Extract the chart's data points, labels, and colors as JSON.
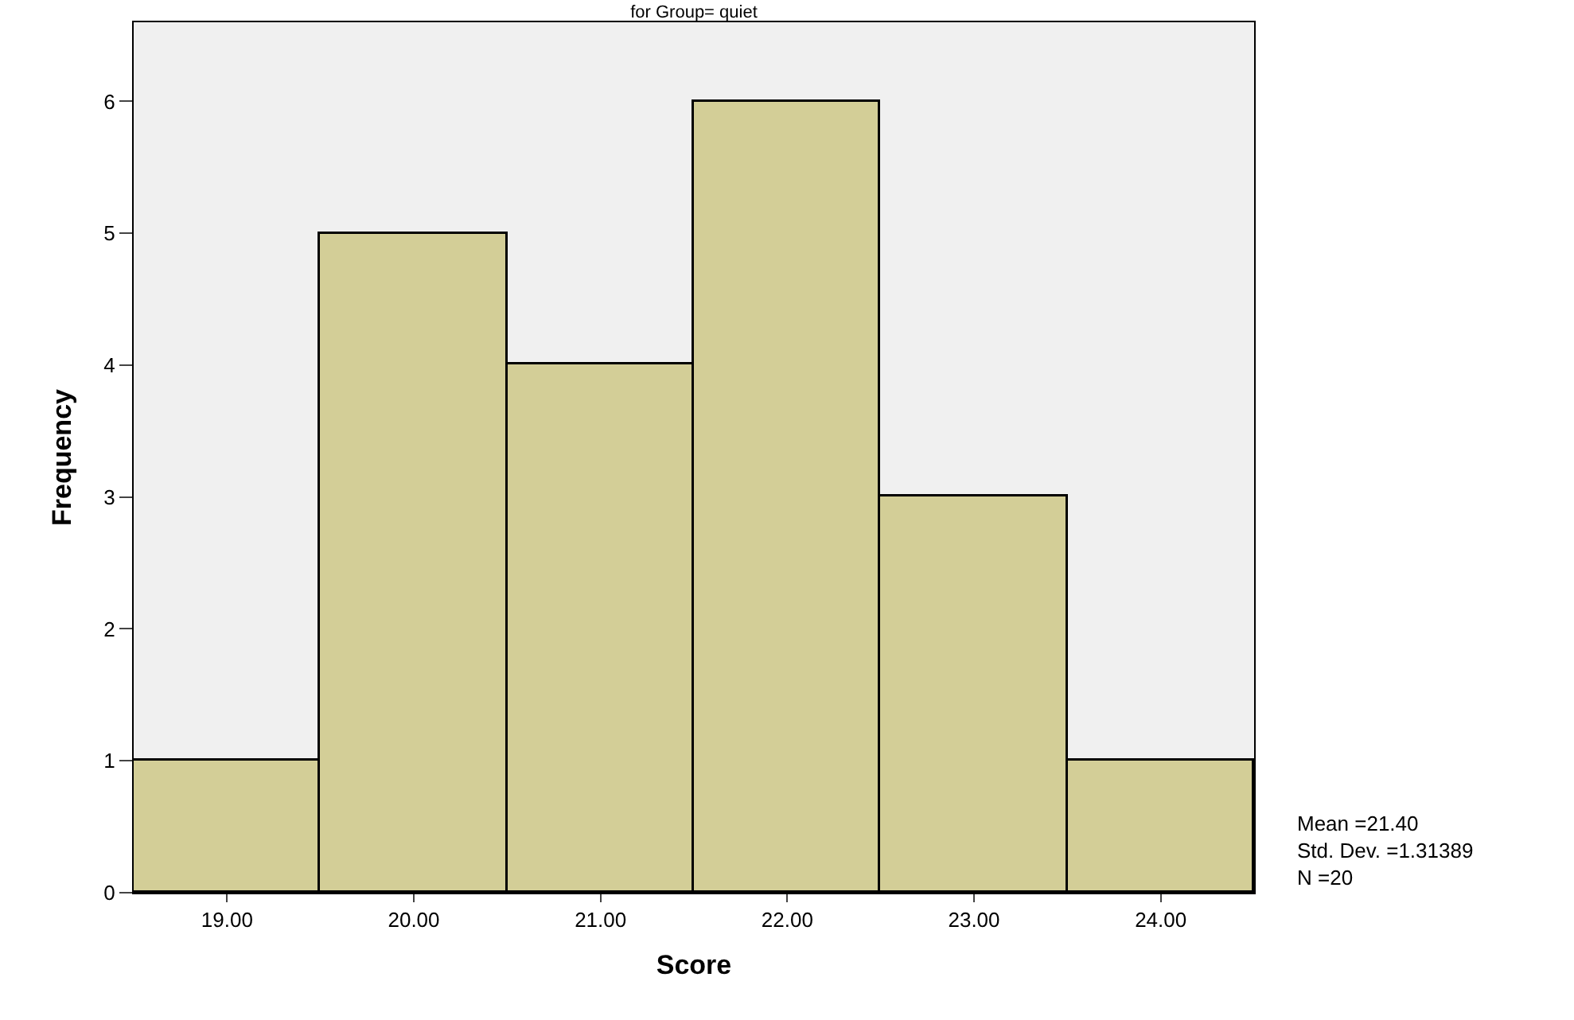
{
  "chart_data": {
    "type": "histogram",
    "title": "for Group= quiet",
    "xlabel": "Score",
    "ylabel": "Frequency",
    "bins": [
      18.5,
      19.5,
      20.5,
      21.5,
      22.5,
      23.5,
      24.5
    ],
    "values": [
      1,
      5,
      4,
      6,
      3,
      1
    ],
    "color": "#d3ce97",
    "xlim": [
      18.5,
      24.5
    ],
    "xticks": [
      {
        "value": 19,
        "label": "19.00"
      },
      {
        "value": 20,
        "label": "20.00"
      },
      {
        "value": 21,
        "label": "21.00"
      },
      {
        "value": 22,
        "label": "22.00"
      },
      {
        "value": 23,
        "label": "23.00"
      },
      {
        "value": 24,
        "label": "24.00"
      }
    ],
    "ylim": [
      0,
      6.6
    ],
    "yticks": [
      0,
      1,
      2,
      3,
      4,
      5,
      6
    ],
    "grid": false,
    "legend": false,
    "annotations": [
      "Mean =21.40\nStd. Dev. =1.31389\nN =20"
    ]
  }
}
